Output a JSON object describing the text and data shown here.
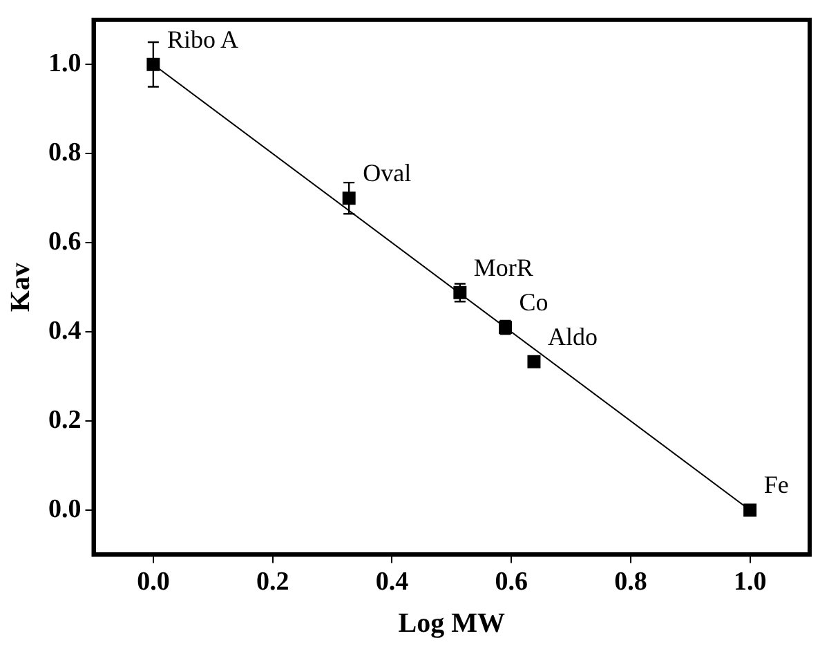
{
  "chart_data": {
    "type": "scatter",
    "xlabel": "Log MW",
    "ylabel": "Kav",
    "x": [
      0,
      0.328,
      0.514,
      0.59,
      0.638,
      1.0
    ],
    "values": [
      1.0,
      0.7,
      0.488,
      0.41,
      0.333,
      0.0
    ],
    "errors": [
      0.05,
      0.035,
      0.02,
      0.015,
      null,
      null
    ],
    "color": "#000000",
    "marker": "square",
    "series": [
      {
        "type": "line",
        "x": [
          0,
          1.0
        ],
        "values": [
          1.0,
          0.0
        ],
        "color": "#000000",
        "marker": "none"
      }
    ],
    "xlim": [
      -0.1,
      1.1
    ],
    "xticks": [
      {
        "value": 0,
        "label": "0.0"
      },
      0.2,
      0.4,
      0.6,
      0.8,
      {
        "value": 1,
        "label": "1.0"
      }
    ],
    "ylim": [
      -0.1,
      1.1
    ],
    "yticks": [
      {
        "value": 0,
        "label": "0.0"
      },
      0.2,
      0.4,
      0.6,
      0.8,
      {
        "value": 1,
        "label": "1.0"
      }
    ],
    "annotations": [
      {
        "text": "Ribo A",
        "x": 0,
        "y": 1.0
      },
      {
        "text": "Oval",
        "x": 0.328,
        "y": 0.7
      },
      {
        "text": "MorR",
        "x": 0.514,
        "y": 0.488
      },
      {
        "text": "Co",
        "x": 0.59,
        "y": 0.41
      },
      {
        "text": "Aldo",
        "x": 0.638,
        "y": 0.333
      },
      {
        "text": "Fe",
        "x": 1.0,
        "y": 0.0
      }
    ],
    "grid": false,
    "legend": false
  }
}
